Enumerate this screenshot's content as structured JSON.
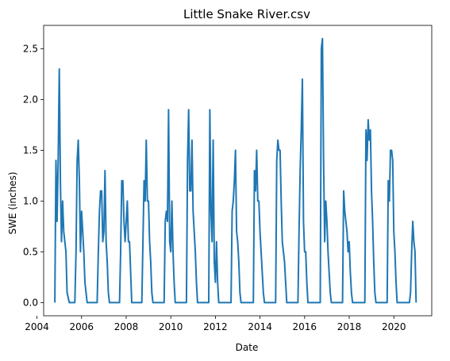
{
  "chart_data": {
    "type": "line",
    "title": "Little Snake River.csv",
    "xlabel": "Date",
    "ylabel": "SWE (inches)",
    "xlim": [
      2004.3,
      2021.7
    ],
    "ylim": [
      -0.13,
      2.73
    ],
    "xticks": [
      2004,
      2006,
      2008,
      2010,
      2012,
      2014,
      2016,
      2018,
      2020
    ],
    "yticks": [
      0.0,
      0.5,
      1.0,
      1.5,
      2.0,
      2.5
    ],
    "ytick_labels": [
      "0.0",
      "0.5",
      "1.0",
      "1.5",
      "2.0",
      "2.5"
    ],
    "grid": false,
    "line_color": "#1f77b4",
    "series": [
      {
        "x": [
          2004.8,
          2004.85,
          2004.9,
          2004.95,
          2005.0,
          2005.05,
          2005.1,
          2005.15,
          2005.2,
          2005.3,
          2005.35,
          2005.45,
          2005.7,
          2005.75,
          2005.8,
          2005.85,
          2005.9,
          2005.95,
          2006.0,
          2006.05,
          2006.1,
          2006.15,
          2006.2,
          2006.25,
          2006.3,
          2006.45,
          2006.7,
          2006.75,
          2006.8,
          2006.85,
          2006.9,
          2006.95,
          2007.0,
          2007.05,
          2007.1,
          2007.15,
          2007.2,
          2007.25,
          2007.3,
          2007.45,
          2007.7,
          2007.75,
          2007.8,
          2007.85,
          2007.9,
          2007.95,
          2008.0,
          2008.05,
          2008.1,
          2008.15,
          2008.2,
          2008.25,
          2008.3,
          2008.45,
          2008.7,
          2008.75,
          2008.8,
          2008.85,
          2008.9,
          2008.95,
          2009.0,
          2009.05,
          2009.1,
          2009.15,
          2009.2,
          2009.25,
          2009.3,
          2009.45,
          2009.7,
          2009.75,
          2009.8,
          2009.85,
          2009.9,
          2009.95,
          2010.0,
          2010.05,
          2010.1,
          2010.15,
          2010.2,
          2010.25,
          2010.3,
          2010.45,
          2010.7,
          2010.75,
          2010.8,
          2010.85,
          2010.9,
          2010.95,
          2011.0,
          2011.05,
          2011.1,
          2011.15,
          2011.2,
          2011.25,
          2011.3,
          2011.45,
          2011.7,
          2011.75,
          2011.8,
          2011.85,
          2011.9,
          2011.95,
          2012.0,
          2012.05,
          2012.1,
          2012.15,
          2012.2,
          2012.25,
          2012.3,
          2012.45,
          2012.7,
          2012.75,
          2012.8,
          2012.85,
          2012.9,
          2012.95,
          2013.0,
          2013.05,
          2013.1,
          2013.15,
          2013.2,
          2013.25,
          2013.3,
          2013.45,
          2013.7,
          2013.75,
          2013.8,
          2013.85,
          2013.9,
          2013.95,
          2014.0,
          2014.05,
          2014.1,
          2014.15,
          2014.2,
          2014.25,
          2014.3,
          2014.45,
          2014.7,
          2014.75,
          2014.8,
          2014.85,
          2014.9,
          2014.95,
          2015.0,
          2015.05,
          2015.1,
          2015.15,
          2015.2,
          2015.25,
          2015.3,
          2015.45,
          2015.7,
          2015.75,
          2015.8,
          2015.85,
          2015.9,
          2015.95,
          2016.0,
          2016.05,
          2016.1,
          2016.15,
          2016.2,
          2016.25,
          2016.3,
          2016.45,
          2016.7,
          2016.75,
          2016.8,
          2016.85,
          2016.9,
          2016.95,
          2017.0,
          2017.05,
          2017.1,
          2017.15,
          2017.2,
          2017.25,
          2017.3,
          2017.45,
          2017.7,
          2017.75,
          2017.8,
          2017.85,
          2017.9,
          2017.95,
          2018.0,
          2018.05,
          2018.1,
          2018.15,
          2018.2,
          2018.25,
          2018.3,
          2018.45,
          2018.7,
          2018.75,
          2018.8,
          2018.85,
          2018.9,
          2018.95,
          2019.0,
          2019.05,
          2019.1,
          2019.15,
          2019.2,
          2019.25,
          2019.3,
          2019.45,
          2019.7,
          2019.75,
          2019.8,
          2019.85,
          2019.9,
          2019.95,
          2020.0,
          2020.05,
          2020.1,
          2020.15,
          2020.2,
          2020.25,
          2020.3,
          2020.45,
          2020.7,
          2020.75,
          2020.8,
          2020.85,
          2020.9,
          2020.95,
          2021.0
        ],
        "y": [
          0.0,
          1.4,
          0.8,
          1.4,
          2.3,
          1.2,
          0.6,
          1.0,
          0.7,
          0.5,
          0.1,
          0.0,
          0.0,
          0.5,
          1.4,
          1.6,
          1.2,
          0.5,
          0.9,
          0.7,
          0.5,
          0.2,
          0.1,
          0.0,
          0.0,
          0.0,
          0.0,
          0.5,
          0.9,
          1.1,
          1.1,
          0.6,
          0.7,
          1.3,
          0.6,
          0.4,
          0.1,
          0.0,
          0.0,
          0.0,
          0.0,
          0.5,
          1.2,
          1.2,
          0.8,
          0.6,
          0.8,
          1.0,
          0.6,
          0.6,
          0.3,
          0.0,
          0.0,
          0.0,
          0.0,
          0.6,
          1.2,
          1.0,
          1.6,
          1.0,
          1.0,
          0.6,
          0.4,
          0.1,
          0.0,
          0.0,
          0.0,
          0.0,
          0.0,
          0.8,
          0.9,
          0.8,
          1.9,
          0.6,
          0.5,
          1.0,
          0.5,
          0.2,
          0.0,
          0.0,
          0.0,
          0.0,
          0.0,
          1.4,
          1.9,
          1.1,
          1.1,
          1.6,
          0.9,
          0.7,
          0.5,
          0.2,
          0.0,
          0.0,
          0.0,
          0.0,
          0.0,
          1.9,
          0.9,
          0.6,
          1.6,
          0.4,
          0.2,
          0.6,
          0.2,
          0.0,
          0.0,
          0.0,
          0.0,
          0.0,
          0.0,
          0.9,
          1.0,
          1.2,
          1.5,
          0.7,
          0.6,
          0.4,
          0.1,
          0.0,
          0.0,
          0.0,
          0.0,
          0.0,
          0.0,
          1.3,
          1.1,
          1.5,
          1.0,
          1.0,
          0.7,
          0.5,
          0.3,
          0.1,
          0.0,
          0.0,
          0.0,
          0.0,
          0.0,
          1.4,
          1.6,
          1.5,
          1.5,
          1.0,
          0.6,
          0.5,
          0.4,
          0.2,
          0.0,
          0.0,
          0.0,
          0.0,
          0.0,
          0.7,
          1.3,
          1.7,
          2.2,
          0.8,
          0.5,
          0.5,
          0.2,
          0.0,
          0.0,
          0.0,
          0.0,
          0.0,
          0.0,
          2.5,
          2.6,
          1.4,
          0.6,
          1.0,
          0.8,
          0.5,
          0.3,
          0.1,
          0.0,
          0.0,
          0.0,
          0.0,
          0.0,
          1.1,
          0.9,
          0.8,
          0.7,
          0.5,
          0.6,
          0.3,
          0.1,
          0.0,
          0.0,
          0.0,
          0.0,
          0.0,
          0.0,
          1.7,
          1.4,
          1.8,
          1.6,
          1.7,
          1.1,
          0.8,
          0.4,
          0.1,
          0.0,
          0.0,
          0.0,
          0.0,
          0.0,
          1.2,
          1.0,
          1.5,
          1.5,
          1.4,
          0.7,
          0.5,
          0.2,
          0.0,
          0.0,
          0.0,
          0.0,
          0.0,
          0.0,
          0.1,
          0.5,
          0.8,
          0.6,
          0.5,
          0.0
        ]
      }
    ]
  }
}
